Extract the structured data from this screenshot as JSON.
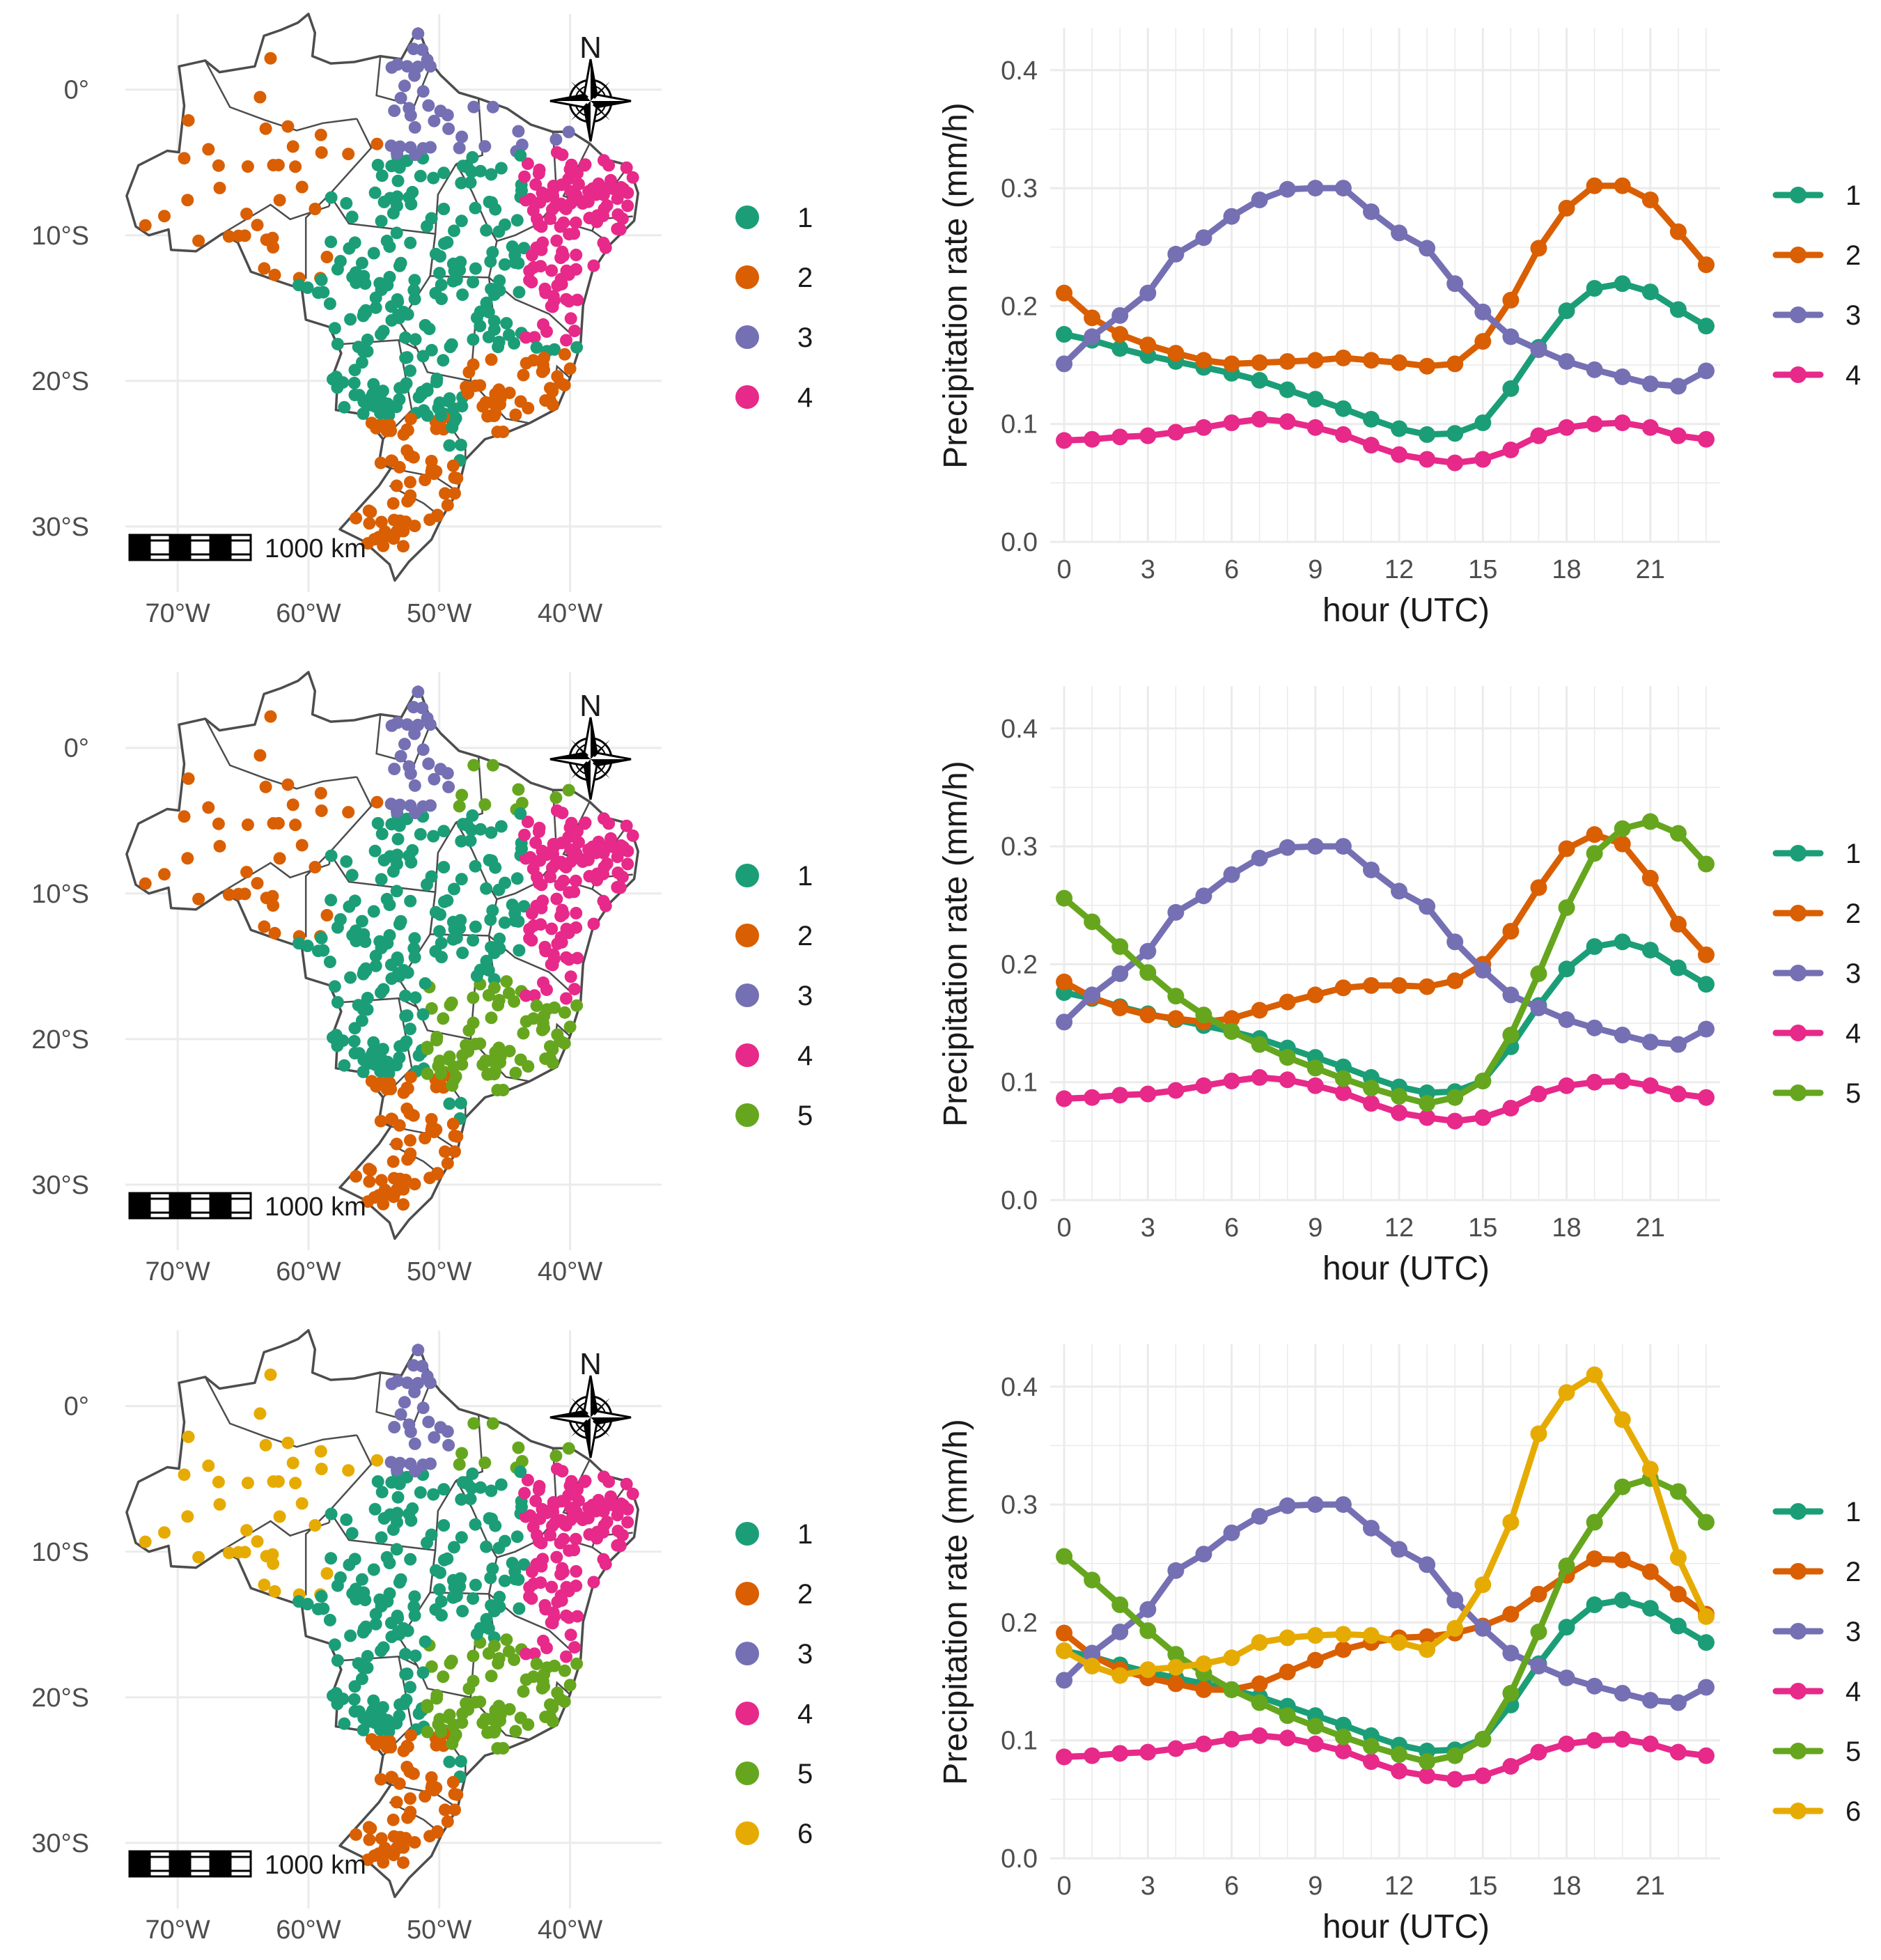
{
  "figure": {
    "colors": {
      "1": "#1b9e77",
      "2": "#d95f02",
      "3": "#7570b3",
      "4": "#e7298a",
      "5": "#66a61e",
      "6": "#e6ab02"
    },
    "map": {
      "lat_ticks": [
        "0°",
        "10°S",
        "20°S",
        "30°S"
      ],
      "lon_ticks": [
        "70°W",
        "60°W",
        "50°W",
        "40°W"
      ],
      "scale_label": "1000 km",
      "north_label": "N"
    },
    "panels": [
      {
        "legend": [
          "1",
          "2",
          "3",
          "4"
        ]
      },
      {
        "legend": [
          "1",
          "2",
          "3",
          "4",
          "5"
        ]
      },
      {
        "legend": [
          "1",
          "2",
          "3",
          "4",
          "5",
          "6"
        ]
      }
    ]
  },
  "chart_data": [
    {
      "type": "line",
      "xlabel": "hour (UTC)",
      "ylabel": "Precipitation rate (mm/h)",
      "x_ticks": [
        "0",
        "3",
        "6",
        "9",
        "12",
        "15",
        "18",
        "21"
      ],
      "y_ticks": [
        "0.0",
        "0.1",
        "0.2",
        "0.3",
        "0.4"
      ],
      "xlim": [
        -0.5,
        23.5
      ],
      "ylim": [
        0,
        0.43
      ],
      "x": [
        0,
        1,
        2,
        3,
        4,
        5,
        6,
        7,
        8,
        9,
        10,
        11,
        12,
        13,
        14,
        15,
        16,
        17,
        18,
        19,
        20,
        21,
        22,
        23
      ],
      "series": [
        {
          "name": "1",
          "values": [
            0.176,
            0.171,
            0.164,
            0.158,
            0.153,
            0.148,
            0.143,
            0.137,
            0.129,
            0.121,
            0.113,
            0.104,
            0.096,
            0.091,
            0.092,
            0.101,
            0.13,
            0.165,
            0.196,
            0.215,
            0.219,
            0.212,
            0.197,
            0.183
          ]
        },
        {
          "name": "2",
          "values": [
            0.211,
            0.19,
            0.176,
            0.167,
            0.16,
            0.154,
            0.151,
            0.152,
            0.153,
            0.154,
            0.156,
            0.154,
            0.152,
            0.149,
            0.151,
            0.17,
            0.205,
            0.249,
            0.283,
            0.302,
            0.302,
            0.29,
            0.263,
            0.235
          ]
        },
        {
          "name": "3",
          "values": [
            0.151,
            0.174,
            0.192,
            0.211,
            0.244,
            0.258,
            0.276,
            0.29,
            0.299,
            0.3,
            0.3,
            0.28,
            0.262,
            0.249,
            0.219,
            0.195,
            0.174,
            0.163,
            0.153,
            0.146,
            0.14,
            0.134,
            0.132,
            0.145
          ]
        },
        {
          "name": "4",
          "values": [
            0.086,
            0.087,
            0.089,
            0.09,
            0.093,
            0.097,
            0.101,
            0.104,
            0.102,
            0.097,
            0.091,
            0.082,
            0.074,
            0.07,
            0.067,
            0.07,
            0.078,
            0.09,
            0.097,
            0.1,
            0.101,
            0.097,
            0.09,
            0.087
          ]
        }
      ]
    },
    {
      "type": "line",
      "xlabel": "hour (UTC)",
      "ylabel": "Precipitation rate (mm/h)",
      "x_ticks": [
        "0",
        "3",
        "6",
        "9",
        "12",
        "15",
        "18",
        "21"
      ],
      "y_ticks": [
        "0.0",
        "0.1",
        "0.2",
        "0.3",
        "0.4"
      ],
      "xlim": [
        -0.5,
        23.5
      ],
      "ylim": [
        0,
        0.43
      ],
      "x": [
        0,
        1,
        2,
        3,
        4,
        5,
        6,
        7,
        8,
        9,
        10,
        11,
        12,
        13,
        14,
        15,
        16,
        17,
        18,
        19,
        20,
        21,
        22,
        23
      ],
      "series": [
        {
          "name": "1",
          "values": [
            0.176,
            0.171,
            0.164,
            0.158,
            0.153,
            0.148,
            0.143,
            0.137,
            0.129,
            0.121,
            0.113,
            0.104,
            0.096,
            0.091,
            0.092,
            0.101,
            0.13,
            0.165,
            0.196,
            0.215,
            0.219,
            0.212,
            0.197,
            0.183
          ]
        },
        {
          "name": "2",
          "values": [
            0.185,
            0.172,
            0.163,
            0.157,
            0.154,
            0.151,
            0.154,
            0.161,
            0.168,
            0.174,
            0.18,
            0.182,
            0.182,
            0.181,
            0.186,
            0.2,
            0.228,
            0.265,
            0.298,
            0.31,
            0.302,
            0.273,
            0.234,
            0.208
          ]
        },
        {
          "name": "3",
          "values": [
            0.151,
            0.174,
            0.192,
            0.211,
            0.244,
            0.258,
            0.276,
            0.29,
            0.299,
            0.3,
            0.3,
            0.28,
            0.262,
            0.249,
            0.219,
            0.195,
            0.174,
            0.163,
            0.153,
            0.146,
            0.14,
            0.134,
            0.132,
            0.145
          ]
        },
        {
          "name": "4",
          "values": [
            0.086,
            0.087,
            0.089,
            0.09,
            0.093,
            0.097,
            0.101,
            0.104,
            0.102,
            0.097,
            0.091,
            0.082,
            0.074,
            0.07,
            0.067,
            0.07,
            0.078,
            0.09,
            0.097,
            0.1,
            0.101,
            0.097,
            0.09,
            0.087
          ]
        },
        {
          "name": "5",
          "values": [
            0.256,
            0.236,
            0.215,
            0.193,
            0.173,
            0.157,
            0.143,
            0.132,
            0.121,
            0.112,
            0.103,
            0.095,
            0.088,
            0.082,
            0.087,
            0.101,
            0.14,
            0.192,
            0.248,
            0.294,
            0.315,
            0.321,
            0.311,
            0.285
          ]
        }
      ]
    },
    {
      "type": "line",
      "xlabel": "hour (UTC)",
      "ylabel": "Precipitation rate (mm/h)",
      "x_ticks": [
        "0",
        "3",
        "6",
        "9",
        "12",
        "15",
        "18",
        "21"
      ],
      "y_ticks": [
        "0.0",
        "0.1",
        "0.2",
        "0.3",
        "0.4"
      ],
      "xlim": [
        -0.5,
        23.5
      ],
      "ylim": [
        0,
        0.43
      ],
      "x": [
        0,
        1,
        2,
        3,
        4,
        5,
        6,
        7,
        8,
        9,
        10,
        11,
        12,
        13,
        14,
        15,
        16,
        17,
        18,
        19,
        20,
        21,
        22,
        23
      ],
      "series": [
        {
          "name": "1",
          "values": [
            0.176,
            0.171,
            0.164,
            0.158,
            0.153,
            0.148,
            0.143,
            0.137,
            0.129,
            0.121,
            0.113,
            0.104,
            0.096,
            0.091,
            0.092,
            0.101,
            0.13,
            0.165,
            0.196,
            0.215,
            0.219,
            0.212,
            0.197,
            0.183
          ]
        },
        {
          "name": "2",
          "values": [
            0.191,
            0.172,
            0.16,
            0.153,
            0.148,
            0.143,
            0.143,
            0.148,
            0.158,
            0.168,
            0.177,
            0.183,
            0.187,
            0.188,
            0.191,
            0.197,
            0.207,
            0.224,
            0.24,
            0.254,
            0.253,
            0.243,
            0.224,
            0.207
          ]
        },
        {
          "name": "3",
          "values": [
            0.151,
            0.174,
            0.192,
            0.211,
            0.244,
            0.258,
            0.276,
            0.29,
            0.299,
            0.3,
            0.3,
            0.28,
            0.262,
            0.249,
            0.219,
            0.195,
            0.174,
            0.163,
            0.153,
            0.146,
            0.14,
            0.134,
            0.132,
            0.145
          ]
        },
        {
          "name": "4",
          "values": [
            0.086,
            0.087,
            0.089,
            0.09,
            0.093,
            0.097,
            0.101,
            0.104,
            0.102,
            0.097,
            0.091,
            0.082,
            0.074,
            0.07,
            0.067,
            0.07,
            0.078,
            0.09,
            0.097,
            0.1,
            0.101,
            0.097,
            0.09,
            0.087
          ]
        },
        {
          "name": "5",
          "values": [
            0.256,
            0.236,
            0.215,
            0.193,
            0.173,
            0.157,
            0.143,
            0.132,
            0.121,
            0.112,
            0.103,
            0.095,
            0.088,
            0.082,
            0.087,
            0.101,
            0.14,
            0.192,
            0.248,
            0.285,
            0.315,
            0.322,
            0.311,
            0.285
          ]
        },
        {
          "name": "6",
          "values": [
            0.176,
            0.163,
            0.155,
            0.16,
            0.162,
            0.165,
            0.17,
            0.183,
            0.187,
            0.189,
            0.19,
            0.189,
            0.183,
            0.177,
            0.195,
            0.232,
            0.285,
            0.36,
            0.395,
            0.41,
            0.372,
            0.33,
            0.255,
            0.205
          ]
        }
      ]
    }
  ]
}
